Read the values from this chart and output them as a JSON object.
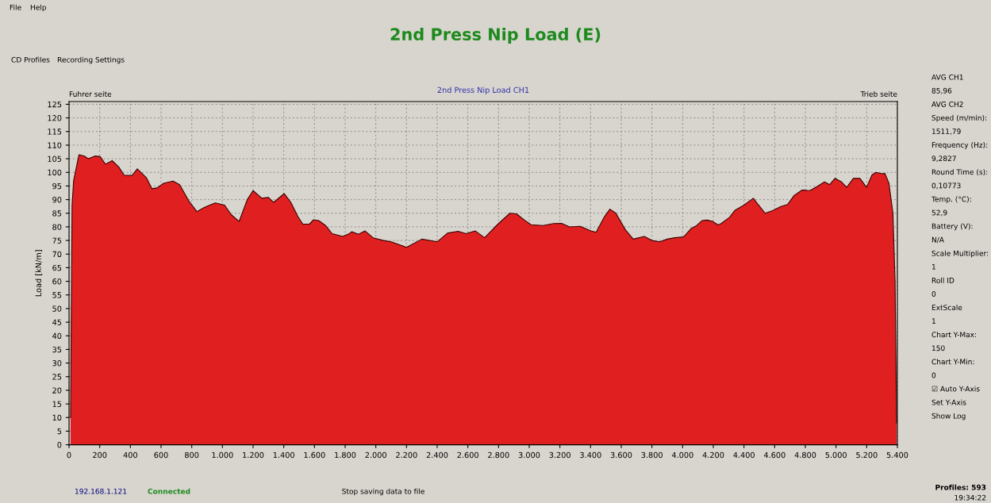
{
  "chart_data": [
    {
      "type": "area",
      "title": "2nd Press Nip Load (E)",
      "subtitle": "2nd Press Nip Load CH1",
      "ylabel": "Load [kN/m]",
      "x": [
        10,
        20,
        30,
        65,
        100,
        126,
        169,
        203,
        238,
        281,
        324,
        359,
        410,
        445,
        505,
        540,
        574,
        617,
        678,
        721,
        781,
        833,
        884,
        953,
        1014,
        1057,
        1109,
        1162,
        1200,
        1257,
        1300,
        1334,
        1403,
        1446,
        1490,
        1524,
        1567,
        1593,
        1628,
        1672,
        1715,
        1784,
        1827,
        1843,
        1887,
        1930,
        1982,
        2050,
        2100,
        2200,
        2300,
        2400,
        2467,
        2536,
        2588,
        2649,
        2709,
        2796,
        2874,
        2917,
        2969,
        3012,
        3090,
        3159,
        3211,
        3263,
        3332,
        3402,
        3436,
        3488,
        3526,
        3565,
        3626,
        3678,
        3750,
        3800,
        3850,
        3900,
        3950,
        4006,
        4058,
        4092,
        4126,
        4160,
        4195,
        4229,
        4246,
        4306,
        4340,
        4400,
        4461,
        4495,
        4538,
        4590,
        4641,
        4684,
        4727,
        4779,
        4830,
        4882,
        4925,
        4959,
        4993,
        5036,
        5070,
        5113,
        5156,
        5199,
        5234,
        5259,
        5302,
        5319,
        5345,
        5371,
        5385,
        5395
      ],
      "series": [
        {
          "color": "#e02020",
          "values": [
            10,
            88,
            97,
            106.5,
            106,
            105,
            106,
            105.8,
            103,
            104.3,
            102,
            99,
            98.8,
            101.3,
            98,
            94,
            94.3,
            96,
            96.8,
            95.5,
            89.5,
            85.6,
            87.2,
            88.8,
            88,
            84.5,
            82,
            90,
            93.3,
            90.5,
            90.8,
            89,
            92.2,
            89,
            84,
            81,
            81,
            82.6,
            82.3,
            80.5,
            77.5,
            76.5,
            77.5,
            78.2,
            77.3,
            78.5,
            76,
            75,
            74.5,
            72.5,
            75.5,
            74.5,
            77.7,
            78.4,
            77.5,
            78.5,
            76,
            81,
            85,
            84.8,
            82.5,
            80.8,
            80.5,
            81.2,
            81.3,
            80,
            80.2,
            78.5,
            78,
            83.5,
            86.5,
            85,
            79,
            75.5,
            76.5,
            75,
            74.5,
            75.5,
            76,
            76.3,
            79.5,
            80.5,
            82.3,
            82.5,
            82,
            80.8,
            81,
            83.5,
            86,
            88,
            90.5,
            88,
            85,
            86,
            87.5,
            88.2,
            91.5,
            93.5,
            93.3,
            95,
            96.5,
            95.5,
            97.8,
            96.5,
            94.5,
            97.8,
            97.8,
            94.5,
            99,
            100,
            99.5,
            99.6,
            96,
            85,
            60,
            8
          ]
        }
      ],
      "xlim": [
        0,
        5400
      ],
      "ylim": [
        0,
        126
      ],
      "xticks": [
        0,
        200,
        400,
        600,
        800,
        {
          "value": 1000,
          "label": "1.000"
        },
        {
          "value": 1200,
          "label": "1.200"
        },
        {
          "value": 1400,
          "label": "1.400"
        },
        {
          "value": 1600,
          "label": "1.600"
        },
        {
          "value": 1800,
          "label": "1.800"
        },
        {
          "value": 2000,
          "label": "2.000"
        },
        {
          "value": 2200,
          "label": "2.200"
        },
        {
          "value": 2400,
          "label": "2.400"
        },
        {
          "value": 2600,
          "label": "2.600"
        },
        {
          "value": 2800,
          "label": "2.800"
        },
        {
          "value": 3000,
          "label": "3.000"
        },
        {
          "value": 3200,
          "label": "3.200"
        },
        {
          "value": 3400,
          "label": "3.400"
        },
        {
          "value": 3600,
          "label": "3.600"
        },
        {
          "value": 3800,
          "label": "3.800"
        },
        {
          "value": 4000,
          "label": "4.000"
        },
        {
          "value": 4200,
          "label": "4.200"
        },
        {
          "value": 4400,
          "label": "4.400"
        },
        {
          "value": 4600,
          "label": "4.600"
        },
        {
          "value": 4800,
          "label": "4.800"
        },
        {
          "value": 5000,
          "label": "5.000"
        },
        {
          "value": 5200,
          "label": "5.200"
        },
        {
          "value": 5400,
          "label": "5.400"
        }
      ],
      "yticks": [
        0,
        5,
        10,
        15,
        20,
        25,
        30,
        35,
        40,
        45,
        50,
        55,
        60,
        65,
        70,
        75,
        80,
        85,
        90,
        95,
        100,
        105,
        110,
        115,
        120,
        125
      ],
      "grid": true,
      "legend": false,
      "annotations": [
        "Fuhrer seite",
        "Trieb seite"
      ]
    },
    {
      "type": "other",
      "annotations": [
        "AVG CH1",
        "85,96",
        "AVG CH2",
        "Speed (m/min):",
        "1511,79",
        "Frequency (Hz):",
        "9,2827",
        "Round Time (s):",
        "0,10773",
        "Temp. (°C):",
        "52,9",
        "Battery (V):",
        "N/A",
        "Scale Multiplier:",
        "1",
        "Roll ID",
        "0",
        "ExtScale",
        "1",
        "Chart Y-Max:",
        "150",
        "Chart Y-Min:",
        "0",
        "☑ Auto Y-Axis",
        "Set Y-Axis",
        "Show Log"
      ]
    },
    {
      "type": "other",
      "annotations": [
        "File",
        "Help",
        "CD Profiles",
        "Recording Settings",
        "192.168.1.121",
        "Connected",
        "Stop saving data to file",
        "Profiles: 593",
        "19:34:22"
      ]
    }
  ]
}
